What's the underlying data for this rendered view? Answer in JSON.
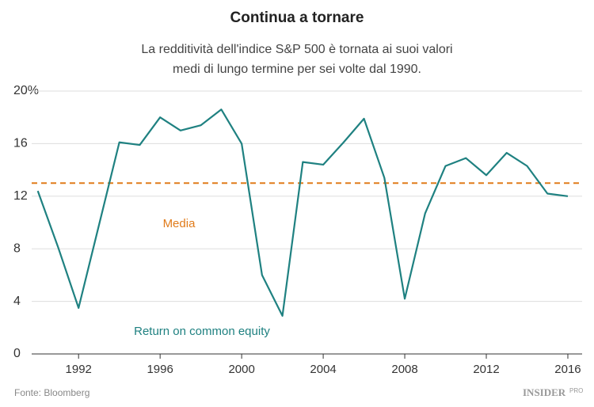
{
  "chart_data": {
    "type": "line",
    "title": "Continua a tornare",
    "subtitle": [
      "La redditività dell'indice S&P 500 è tornata ai suoi valori",
      "medi di lungo termine per sei volte dal 1990."
    ],
    "x": [
      1990,
      1991,
      1992,
      1993,
      1994,
      1995,
      1996,
      1997,
      1998,
      1999,
      2000,
      2001,
      2002,
      2003,
      2004,
      2005,
      2006,
      2007,
      2008,
      2009,
      2010,
      2011,
      2012,
      2013,
      2014,
      2015,
      2016
    ],
    "series": [
      {
        "name": "Return on common equity",
        "color": "#1f8181",
        "values": [
          12.4,
          8.1,
          3.5,
          9.8,
          16.1,
          15.9,
          18.0,
          17.0,
          17.4,
          18.6,
          16.0,
          6.0,
          2.9,
          14.6,
          14.4,
          16.1,
          17.9,
          13.4,
          4.2,
          10.7,
          14.3,
          14.9,
          13.6,
          15.3,
          14.3,
          12.2,
          12.0
        ]
      }
    ],
    "reference": {
      "label": "Media",
      "value": 13.0,
      "color": "#e07b1a"
    },
    "xlim": [
      1989.7,
      2016.7
    ],
    "xticks": [
      1992,
      1996,
      2000,
      2004,
      2008,
      2012,
      2016
    ],
    "ylim": [
      0,
      20
    ],
    "yticks": [
      0,
      4,
      8,
      12,
      16,
      {
        "value": 20,
        "label": "20%"
      }
    ],
    "grid": true,
    "source": "Fonte: Bloomberg",
    "logo": {
      "main": "INSIDER",
      "sub": "PRO"
    }
  }
}
